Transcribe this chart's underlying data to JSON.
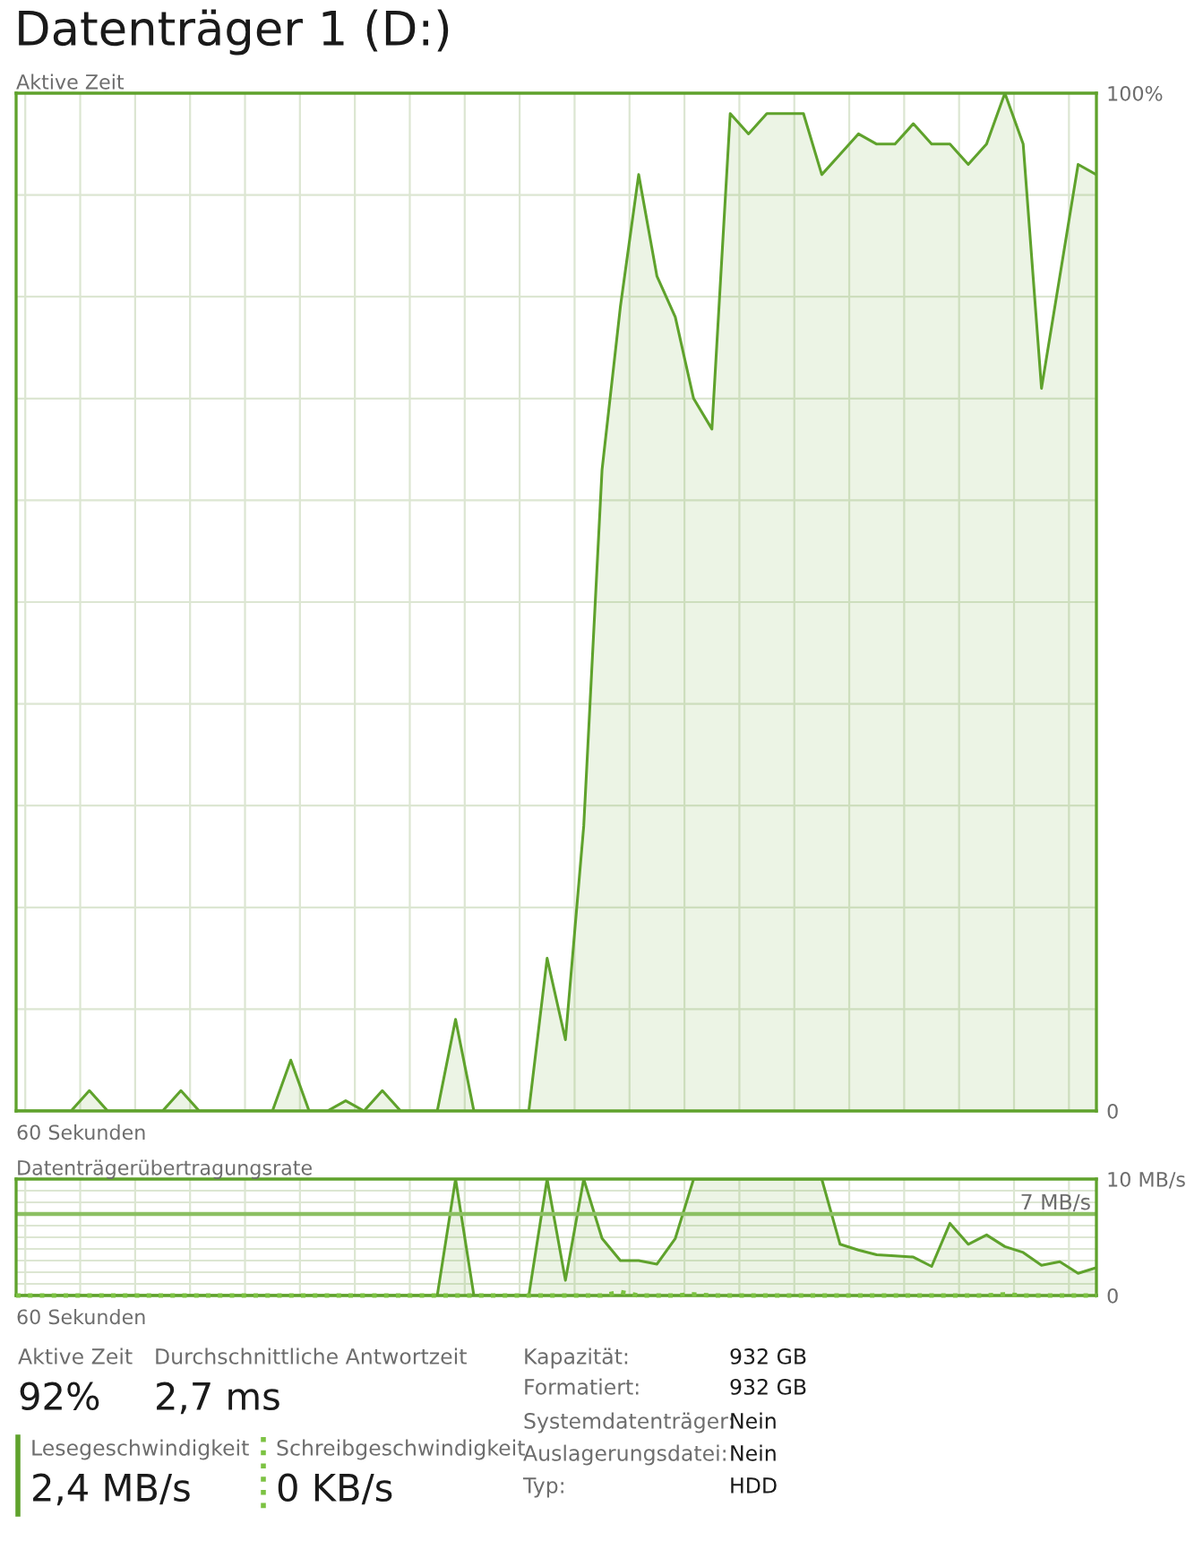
{
  "chart_data": [
    {
      "type": "area",
      "title": "Datenträger 1 (D:)",
      "ylabel": "Aktive Zeit",
      "xlabel": "60 Sekunden",
      "categories": [
        null,
        null,
        null,
        null,
        null,
        null,
        null,
        null,
        null,
        null,
        null,
        null,
        null,
        null,
        null,
        null,
        null,
        null,
        null,
        null,
        null,
        null,
        null,
        null,
        null,
        null,
        null,
        null,
        null,
        null,
        null,
        null,
        null,
        null,
        null,
        null,
        null,
        null,
        null,
        null,
        null,
        null,
        null,
        null,
        null,
        null,
        null,
        null,
        null,
        null,
        null,
        null,
        null,
        null,
        null,
        null,
        null,
        null,
        null,
        null
      ],
      "series": [
        {
          "color": "#5fa22c",
          "values": [
            0,
            0,
            0,
            0,
            2,
            0,
            0,
            0,
            0,
            2,
            0,
            0,
            0,
            0,
            0,
            5,
            0,
            0,
            1,
            0,
            2,
            0,
            0,
            0,
            9,
            0,
            0,
            0,
            0,
            15,
            7,
            28,
            63,
            79,
            92,
            82,
            78,
            70,
            67,
            98,
            96,
            98,
            98,
            98,
            92,
            94,
            96,
            95,
            95,
            97,
            95,
            95,
            93,
            95,
            100,
            95,
            71,
            82,
            93,
            92
          ]
        }
      ],
      "ylim": [
        0,
        100
      ],
      "yticks": [
        0,
        {
          "value": 10,
          "label": null
        },
        {
          "value": 20,
          "label": null
        },
        {
          "value": 30,
          "label": null
        },
        {
          "value": 40,
          "label": null
        },
        {
          "value": 50,
          "label": null
        },
        {
          "value": 60,
          "label": null
        },
        {
          "value": 70,
          "label": null
        },
        {
          "value": 80,
          "label": null
        },
        {
          "value": 90,
          "label": null
        },
        {
          "value": 100,
          "label": "100%"
        }
      ],
      "grid": true
    },
    {
      "type": "area",
      "ylabel": "Datenträgerübertragungsrate",
      "xlabel": "60 Sekunden",
      "categories": [
        null,
        null,
        null,
        null,
        null,
        null,
        null,
        null,
        null,
        null,
        null,
        null,
        null,
        null,
        null,
        null,
        null,
        null,
        null,
        null,
        null,
        null,
        null,
        null,
        null,
        null,
        null,
        null,
        null,
        null,
        null,
        null,
        null,
        null,
        null,
        null,
        null,
        null,
        null,
        null,
        null,
        null,
        null,
        null,
        null,
        null,
        null,
        null,
        null,
        null,
        null,
        null,
        null,
        null,
        null,
        null,
        null,
        null,
        null,
        null
      ],
      "series": [
        {
          "color": "#5fa22c",
          "values": [
            0,
            0,
            0,
            0,
            0,
            0,
            0,
            0,
            0,
            0,
            0,
            0,
            0,
            0,
            0,
            0,
            0,
            0,
            0,
            0,
            0,
            0,
            0,
            0,
            10,
            0,
            0,
            0,
            0,
            10,
            1.3,
            10,
            4.9,
            3.0,
            3.0,
            2.7,
            4.9,
            10,
            10,
            10,
            10,
            10,
            10,
            10,
            10,
            4.4,
            3.9,
            3.5,
            3.4,
            3.3,
            2.5,
            6.2,
            4.4,
            5.2,
            4.2,
            3.7,
            2.6,
            2.9,
            1.9,
            2.4
          ]
        },
        {
          "type": "line",
          "line_style": "dotted",
          "color": "#7cc242",
          "values": [
            0,
            0,
            0,
            0,
            0,
            0,
            0,
            0,
            0,
            0,
            0,
            0,
            0,
            0,
            0,
            0,
            0,
            0,
            0,
            0,
            0,
            0,
            0,
            0,
            0,
            0,
            0,
            0,
            0,
            0,
            0,
            0,
            0,
            0.3,
            0,
            0,
            0,
            0.1,
            0,
            0,
            0,
            0,
            0,
            0,
            0,
            0,
            0,
            0,
            0,
            0,
            0,
            0,
            0,
            0,
            0.1,
            0,
            0,
            0,
            0,
            0
          ]
        }
      ],
      "ylim": [
        0,
        10
      ],
      "yticks": [
        0,
        {
          "value": 1,
          "label": null
        },
        {
          "value": 2,
          "label": null
        },
        {
          "value": 3,
          "label": null
        },
        {
          "value": 4,
          "label": null
        },
        {
          "value": 5,
          "label": null
        },
        {
          "value": 6,
          "label": null
        },
        {
          "value": 8,
          "label": null
        },
        {
          "value": 9,
          "label": null
        },
        {
          "value": 10,
          "label": "10 MB/s"
        }
      ],
      "ref_lines": [
        {
          "axis": "y",
          "value": 7,
          "label": "7 MB/s",
          "color": "#8cc063"
        }
      ],
      "grid": true
    },
    {
      "type": "other",
      "annotations": [
        "Aktive Zeit",
        "92%",
        "Durchschnittliche Antwortzeit",
        "2,7 ms",
        "Lesegeschwindigkeit",
        "2,4 MB/s",
        "Schreibgeschwindigkeit",
        "0 KB/s",
        "Kapazität:",
        "932 GB",
        "Formatiert:",
        "932 GB",
        "Systemdatenträger:",
        "Nein",
        "Auslagerungsdatei:",
        "Nein",
        "Typ:",
        "HDD"
      ]
    }
  ]
}
